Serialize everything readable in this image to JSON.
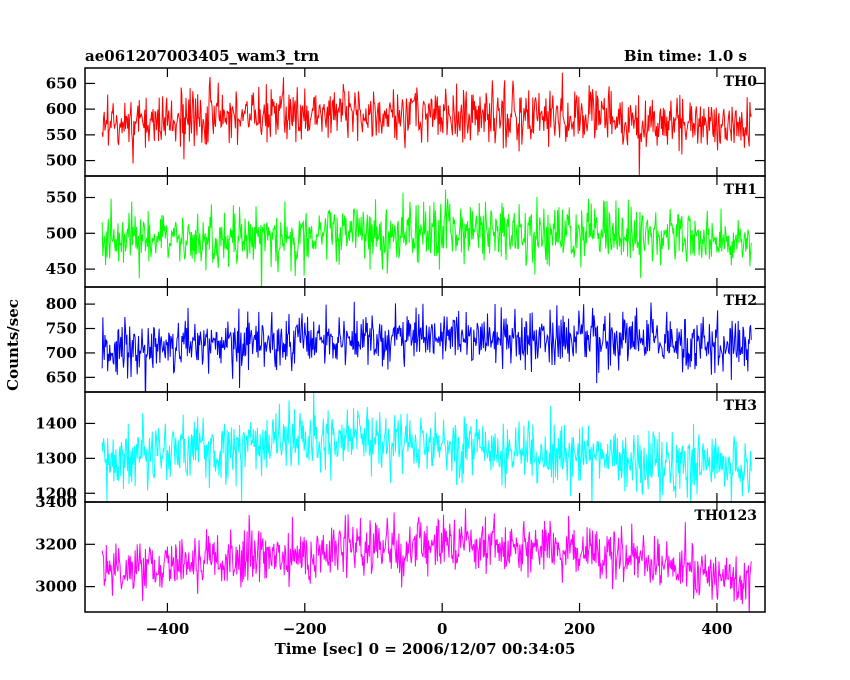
{
  "chart_data": {
    "type": "line",
    "title_left": "ae061207003405_wam3_trn",
    "title_right": "Bin time: 1.0 s",
    "xlabel": "Time [sec] 0 = 2006/12/07 00:34:05",
    "ylabel": "Counts/sec",
    "xlim": [
      -520,
      470
    ],
    "x_range": [
      -495,
      450
    ],
    "x_ticks": [
      -400,
      -200,
      0,
      200,
      400
    ],
    "x_tick_labels": [
      "−400",
      "−200",
      "0",
      "200",
      "400"
    ],
    "grid": false,
    "panels": [
      {
        "name": "TH0",
        "color": "#ff0000",
        "ylim": [
          470,
          680
        ],
        "y_ticks": [
          500,
          550,
          600,
          650
        ],
        "y_tick_labels": [
          "500",
          "550",
          "600",
          "650"
        ],
        "trend": [
          [
            -495,
            575
          ],
          [
            -300,
            585
          ],
          [
            -100,
            592
          ],
          [
            0,
            592
          ],
          [
            150,
            588
          ],
          [
            300,
            578
          ],
          [
            450,
            565
          ]
        ],
        "noise": 27
      },
      {
        "name": "TH1",
        "color": "#00ff00",
        "ylim": [
          425,
          580
        ],
        "y_ticks": [
          450,
          500,
          550
        ],
        "y_tick_labels": [
          "450",
          "500",
          "550"
        ],
        "trend": [
          [
            -495,
            488
          ],
          [
            -300,
            492
          ],
          [
            -100,
            500
          ],
          [
            0,
            505
          ],
          [
            200,
            500
          ],
          [
            350,
            495
          ],
          [
            450,
            490
          ]
        ],
        "noise": 21
      },
      {
        "name": "TH2",
        "color": "#0000ff",
        "ylim": [
          620,
          835
        ],
        "y_ticks": [
          650,
          700,
          750,
          800
        ],
        "y_tick_labels": [
          "650",
          "700",
          "750",
          "800"
        ],
        "trend": [
          [
            -495,
            705
          ],
          [
            -300,
            720
          ],
          [
            -100,
            732
          ],
          [
            100,
            732
          ],
          [
            300,
            725
          ],
          [
            450,
            712
          ]
        ],
        "noise": 28
      },
      {
        "name": "TH3",
        "color": "#00ffff",
        "ylim": [
          1175,
          1490
        ],
        "y_ticks": [
          1200,
          1300,
          1400
        ],
        "y_tick_labels": [
          "1200",
          "1300",
          "1400"
        ],
        "trend": [
          [
            -495,
            1300
          ],
          [
            -300,
            1330
          ],
          [
            -200,
            1350
          ],
          [
            0,
            1340
          ],
          [
            200,
            1310
          ],
          [
            350,
            1280
          ],
          [
            450,
            1265
          ]
        ],
        "noise": 45
      },
      {
        "name": "TH0123",
        "color": "#ff00ff",
        "ylim": [
          2880,
          3400
        ],
        "y_ticks": [
          3000,
          3200,
          3400
        ],
        "y_tick_labels": [
          "3000",
          "3200",
          "3400"
        ],
        "trend": [
          [
            -495,
            3080
          ],
          [
            -300,
            3140
          ],
          [
            -100,
            3190
          ],
          [
            50,
            3200
          ],
          [
            200,
            3170
          ],
          [
            350,
            3090
          ],
          [
            450,
            3030
          ]
        ],
        "noise": 65
      }
    ]
  }
}
